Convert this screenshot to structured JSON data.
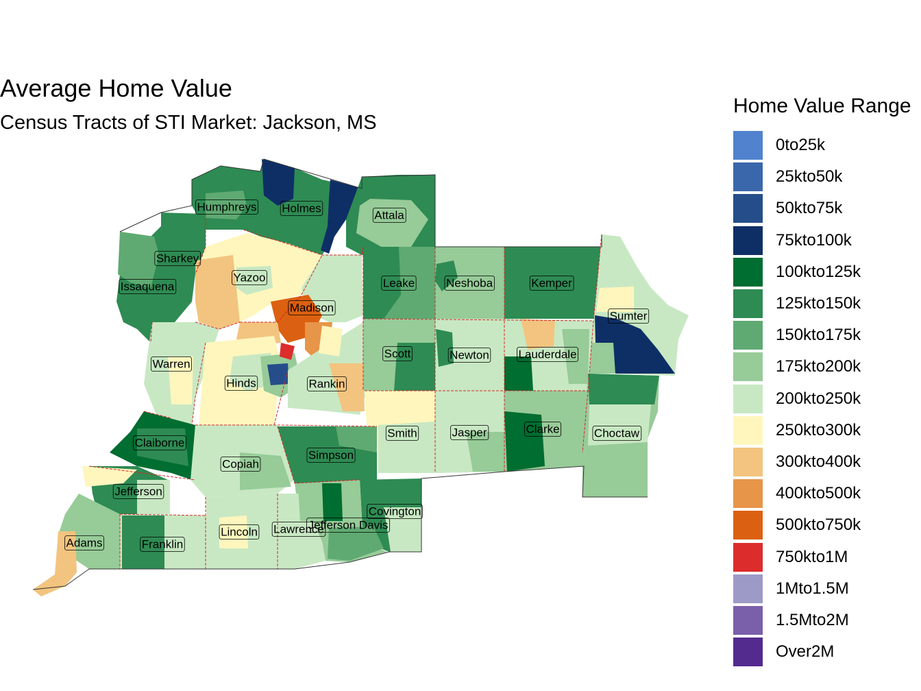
{
  "title": "Average Home Value",
  "subtitle": "Census Tracts of STI Market: Jackson, MS",
  "legend": {
    "title": "Home Value Range",
    "items": [
      {
        "label": "0to25k",
        "color": "#5082CE"
      },
      {
        "label": "25kto50k",
        "color": "#3A67AC"
      },
      {
        "label": "50kto75k",
        "color": "#244D8A"
      },
      {
        "label": "75kto100k",
        "color": "#0E2F66"
      },
      {
        "label": "100kto125k",
        "color": "#006D31"
      },
      {
        "label": "125kto150k",
        "color": "#2E8B53"
      },
      {
        "label": "150kto175k",
        "color": "#5FAA72"
      },
      {
        "label": "175kto200k",
        "color": "#97CB98"
      },
      {
        "label": "200kto250k",
        "color": "#C8E8C3"
      },
      {
        "label": "250kto300k",
        "color": "#FFF6BD"
      },
      {
        "label": "300kto400k",
        "color": "#F2C47F"
      },
      {
        "label": "400kto500k",
        "color": "#E79549"
      },
      {
        "label": "500kto750k",
        "color": "#DC6011"
      },
      {
        "label": "750kto1M",
        "color": "#DD2C2C"
      },
      {
        "label": "1Mto1.5M",
        "color": "#9E9AC7"
      },
      {
        "label": "1.5Mto2M",
        "color": "#7A5FAA"
      },
      {
        "label": "Over2M",
        "color": "#532A8E"
      }
    ]
  },
  "counties": [
    "Humphreys",
    "Holmes",
    "Attala",
    "Sharkey",
    "Yazoo",
    "Issaquena",
    "Leake",
    "Neshoba",
    "Kemper",
    "Madison",
    "Sumter",
    "Scott",
    "Newton",
    "Lauderdale",
    "Warren",
    "Hinds",
    "Rankin",
    "Smith",
    "Jasper",
    "Clarke",
    "Choctaw",
    "Claiborne",
    "Simpson",
    "Copiah",
    "Jefferson",
    "Covington",
    "Jefferson Davis",
    "Lincoln",
    "Lawrence",
    "Adams",
    "Franklin"
  ]
}
